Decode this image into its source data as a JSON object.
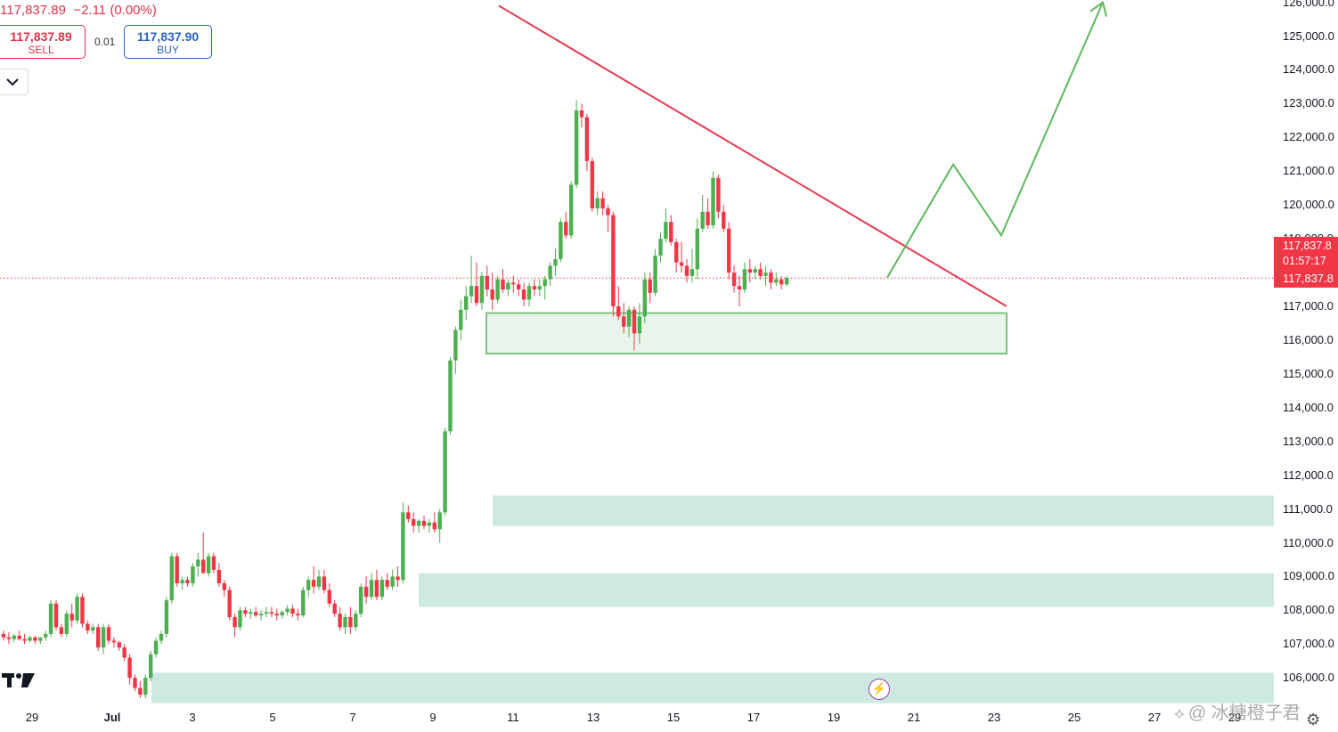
{
  "header": {
    "price": "117,837.89",
    "change": "−2.11 (0.00%)"
  },
  "trade": {
    "sell_price": "117,837.89",
    "sell_label": "SELL",
    "spread": "0.01",
    "buy_price": "117,837.90",
    "buy_label": "BUY"
  },
  "icons": {
    "collapse": "chevron-down-icon",
    "logo": "tradingview-logo",
    "bolt": "lightning-icon",
    "settings": "gear-icon"
  },
  "price_tag": {
    "price": "117,837.8",
    "countdown": "01:57:17",
    "price_line": "117,837.8"
  },
  "watermark": "@ 冰糖橙子君",
  "colors": {
    "up": "#4caf50",
    "down": "#f23645",
    "trendline": "#e53950",
    "projection": "#5cb85c",
    "zone": "#cde9e1"
  },
  "chart_data": {
    "type": "candlestick",
    "y_ticks": [
      "126,000.0",
      "125,000.0",
      "124,000.0",
      "123,000.0",
      "122,000.0",
      "121,000.0",
      "120,000.0",
      "119,000.0",
      "117,000.0",
      "116,000.0",
      "115,000.0",
      "114,000.0",
      "113,000.0",
      "112,000.0",
      "111,000.0",
      "110,000.0",
      "109,000.0",
      "108,000.0",
      "107,000.0",
      "106,000.0"
    ],
    "x_ticks": [
      "29",
      "Jul",
      "3",
      "5",
      "7",
      "9",
      "11",
      "13",
      "15",
      "17",
      "19",
      "21",
      "23",
      "25",
      "27",
      "29"
    ],
    "current_price": 117837.89,
    "candles": [
      [
        107300,
        107400,
        107100,
        107200
      ],
      [
        107200,
        107350,
        107000,
        107150
      ],
      [
        107150,
        107300,
        107050,
        107250
      ],
      [
        107250,
        107400,
        107100,
        107150
      ],
      [
        107150,
        107300,
        107000,
        107100
      ],
      [
        107100,
        107250,
        107050,
        107200
      ],
      [
        107200,
        107250,
        107000,
        107100
      ],
      [
        107100,
        107200,
        107000,
        107200
      ],
      [
        107200,
        107400,
        107100,
        107300
      ],
      [
        107300,
        108300,
        107200,
        108200
      ],
      [
        108200,
        108300,
        107400,
        107500
      ],
      [
        107500,
        107600,
        107200,
        107300
      ],
      [
        107300,
        108000,
        107200,
        107900
      ],
      [
        107900,
        108200,
        107500,
        107700
      ],
      [
        107700,
        108500,
        107600,
        108400
      ],
      [
        108400,
        108500,
        107500,
        107600
      ],
      [
        107600,
        107700,
        107300,
        107400
      ],
      [
        107400,
        107600,
        107300,
        107500
      ],
      [
        107500,
        107600,
        106800,
        106900
      ],
      [
        106900,
        107600,
        106700,
        107500
      ],
      [
        107500,
        107600,
        107000,
        107100
      ],
      [
        107100,
        107200,
        106900,
        107050
      ],
      [
        107050,
        107100,
        106800,
        106900
      ],
      [
        106900,
        107000,
        106500,
        106600
      ],
      [
        106600,
        106700,
        105800,
        106000
      ],
      [
        106000,
        106100,
        105600,
        105700
      ],
      [
        105700,
        105900,
        105400,
        105500
      ],
      [
        105500,
        106100,
        105400,
        106000
      ],
      [
        106000,
        106800,
        105900,
        106700
      ],
      [
        106700,
        107200,
        106600,
        107100
      ],
      [
        107100,
        107400,
        107000,
        107300
      ],
      [
        107300,
        108400,
        107200,
        108300
      ],
      [
        108300,
        109700,
        108200,
        109600
      ],
      [
        109600,
        109700,
        108700,
        108800
      ],
      [
        108800,
        109000,
        108600,
        108900
      ],
      [
        108900,
        109000,
        108700,
        108800
      ],
      [
        108800,
        109400,
        108700,
        109300
      ],
      [
        109300,
        109700,
        109000,
        109500
      ],
      [
        109500,
        110300,
        109200,
        109100
      ],
      [
        109100,
        109700,
        109000,
        109600
      ],
      [
        109600,
        109700,
        109100,
        109200
      ],
      [
        109200,
        109400,
        108700,
        108800
      ],
      [
        108800,
        108900,
        108400,
        108600
      ],
      [
        108600,
        108700,
        107700,
        107800
      ],
      [
        107800,
        107900,
        107200,
        107500
      ],
      [
        107500,
        108100,
        107400,
        108000
      ],
      [
        108000,
        108100,
        107800,
        107900
      ],
      [
        107900,
        108050,
        107750,
        107950
      ],
      [
        107950,
        108100,
        107800,
        107850
      ],
      [
        107850,
        108000,
        107700,
        107900
      ],
      [
        107900,
        108100,
        107800,
        107950
      ],
      [
        107950,
        108100,
        107800,
        107900
      ],
      [
        107900,
        108050,
        107700,
        107850
      ],
      [
        107850,
        108000,
        107750,
        107950
      ],
      [
        107950,
        108150,
        107850,
        108050
      ],
      [
        108050,
        108150,
        107800,
        107900
      ],
      [
        107900,
        108050,
        107700,
        107850
      ],
      [
        107850,
        108700,
        107800,
        108600
      ],
      [
        108600,
        109000,
        108400,
        108900
      ],
      [
        108900,
        109300,
        108500,
        108700
      ],
      [
        108700,
        109200,
        108600,
        109000
      ],
      [
        109000,
        109200,
        108500,
        108600
      ],
      [
        108600,
        108800,
        108100,
        108200
      ],
      [
        108200,
        108300,
        107800,
        107900
      ],
      [
        107900,
        108100,
        107400,
        107500
      ],
      [
        107500,
        107900,
        107300,
        107800
      ],
      [
        107800,
        108100,
        107300,
        107500
      ],
      [
        107500,
        108000,
        107400,
        107900
      ],
      [
        107900,
        108800,
        107800,
        108700
      ],
      [
        108700,
        109000,
        108200,
        108400
      ],
      [
        108400,
        109100,
        108300,
        108900
      ],
      [
        108900,
        109200,
        108300,
        108400
      ],
      [
        108400,
        109000,
        108300,
        108900
      ],
      [
        108900,
        109100,
        108600,
        108700
      ],
      [
        108700,
        109200,
        108600,
        109000
      ],
      [
        109000,
        109300,
        108700,
        108900
      ],
      [
        108900,
        111200,
        108800,
        110900
      ],
      [
        110900,
        111100,
        110600,
        110700
      ],
      [
        110700,
        110900,
        110300,
        110500
      ],
      [
        110500,
        110700,
        110300,
        110650
      ],
      [
        110650,
        110800,
        110400,
        110500
      ],
      [
        110500,
        110700,
        110300,
        110600
      ],
      [
        110600,
        110900,
        110300,
        110400
      ],
      [
        110400,
        111000,
        110000,
        110900
      ],
      [
        110900,
        113400,
        110800,
        113300
      ],
      [
        113300,
        115500,
        113200,
        115400
      ],
      [
        115400,
        116400,
        115000,
        116300
      ],
      [
        116300,
        117200,
        116000,
        116900
      ],
      [
        116900,
        117600,
        116600,
        117300
      ],
      [
        117300,
        118500,
        117100,
        117600
      ],
      [
        117600,
        118300,
        117000,
        117100
      ],
      [
        117100,
        118000,
        116900,
        117900
      ],
      [
        117900,
        118200,
        117300,
        117500
      ],
      [
        117500,
        118000,
        116900,
        117200
      ],
      [
        117200,
        117900,
        117100,
        117800
      ],
      [
        117800,
        118100,
        117400,
        117500
      ],
      [
        117500,
        117800,
        117300,
        117700
      ],
      [
        117700,
        117900,
        117400,
        117650
      ],
      [
        117650,
        117800,
        117300,
        117500
      ],
      [
        117500,
        117700,
        117000,
        117200
      ],
      [
        117200,
        117700,
        117000,
        117600
      ],
      [
        117600,
        117800,
        117300,
        117500
      ],
      [
        117500,
        117800,
        117300,
        117600
      ],
      [
        117600,
        117900,
        117200,
        117800
      ],
      [
        117800,
        118300,
        117600,
        118200
      ],
      [
        118200,
        118700,
        117900,
        118400
      ],
      [
        118400,
        119600,
        118300,
        119500
      ],
      [
        119500,
        119800,
        119000,
        119100
      ],
      [
        119100,
        120700,
        119000,
        120600
      ],
      [
        120600,
        123100,
        120500,
        122800
      ],
      [
        122800,
        123000,
        122300,
        122600
      ],
      [
        122600,
        122700,
        121000,
        121300
      ],
      [
        121300,
        121400,
        119800,
        119900
      ],
      [
        119900,
        120400,
        119700,
        120200
      ],
      [
        120200,
        120400,
        119700,
        119900
      ],
      [
        119900,
        120000,
        119200,
        119700
      ],
      [
        119700,
        119800,
        116700,
        117000
      ],
      [
        117000,
        117600,
        116600,
        116700
      ],
      [
        116700,
        117100,
        116200,
        116400
      ],
      [
        116400,
        117000,
        116100,
        116900
      ],
      [
        116900,
        117000,
        115700,
        116200
      ],
      [
        116200,
        117100,
        115900,
        116700
      ],
      [
        116700,
        118000,
        116500,
        117800
      ],
      [
        117800,
        118000,
        117100,
        117400
      ],
      [
        117400,
        118700,
        117300,
        118500
      ],
      [
        118500,
        119200,
        118300,
        119000
      ],
      [
        119000,
        119900,
        118900,
        119500
      ],
      [
        119500,
        119700,
        118800,
        118900
      ],
      [
        118900,
        119000,
        118000,
        118300
      ],
      [
        118300,
        118900,
        118000,
        118200
      ],
      [
        118200,
        118400,
        117700,
        117900
      ],
      [
        117900,
        118700,
        117700,
        118100
      ],
      [
        118100,
        119600,
        117800,
        119300
      ],
      [
        119300,
        120300,
        119200,
        119800
      ],
      [
        119800,
        120200,
        119300,
        119400
      ],
      [
        119400,
        121000,
        119300,
        120800
      ],
      [
        120800,
        120900,
        119600,
        119800
      ],
      [
        119800,
        120000,
        119200,
        119300
      ],
      [
        119300,
        119500,
        117800,
        118000
      ],
      [
        118000,
        118200,
        117400,
        117600
      ],
      [
        117600,
        117900,
        117000,
        117500
      ],
      [
        117500,
        118300,
        117400,
        118100
      ],
      [
        118100,
        118400,
        117700,
        118000
      ],
      [
        118000,
        118200,
        117800,
        118100
      ],
      [
        118100,
        118300,
        117800,
        117900
      ],
      [
        117900,
        118200,
        117600,
        118000
      ],
      [
        118000,
        118100,
        117500,
        117700
      ],
      [
        117700,
        118000,
        117600,
        117800
      ],
      [
        117800,
        117900,
        117500,
        117650
      ],
      [
        117650,
        117900,
        117600,
        117840
      ]
    ],
    "trendline": {
      "from": [
        117900,
        125900
      ],
      "to": [
        120700,
        117000
      ]
    },
    "support_zone": {
      "top": 116800,
      "bottom": 115600
    },
    "demand_zones": [
      {
        "top": 111400,
        "bottom": 110500
      },
      {
        "top": 109100,
        "bottom": 108100
      },
      {
        "top": 106150,
        "bottom": 105250
      }
    ],
    "projection": [
      117850,
      119400,
      119200,
      121200,
      119100,
      126000
    ]
  }
}
